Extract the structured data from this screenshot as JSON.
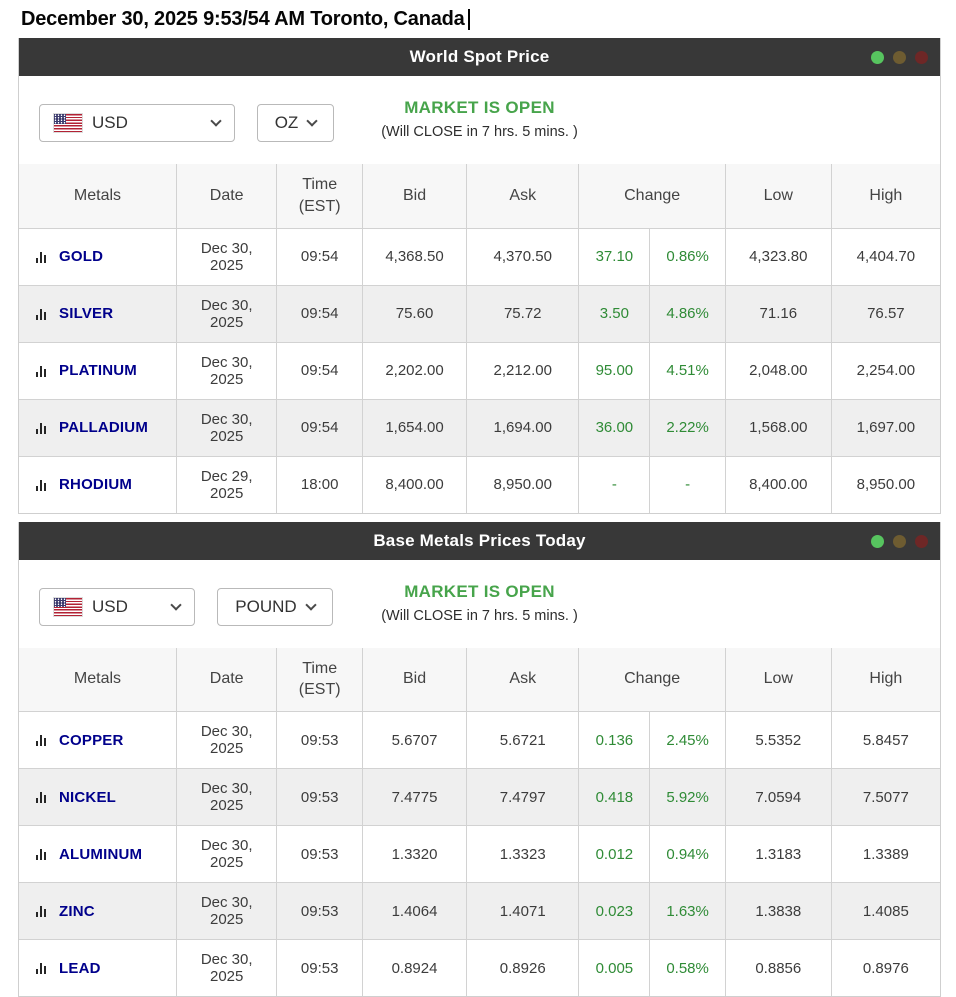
{
  "page": {
    "date_heading": "December 30, 2025 9:53/54 AM Toronto, Canada"
  },
  "colors": {
    "header_bar": "#383838",
    "market_open_green": "#47a44b",
    "positive_change_green": "#2f8b36",
    "metal_link_navy": "#00008b",
    "dot_green": "#57c45f",
    "dot_amber": "#6e5c31",
    "dot_red": "#6e2726",
    "zebra_row": "#efefef"
  },
  "table_headers": {
    "metals": "Metals",
    "date": "Date",
    "time_1": "Time",
    "time_2": "(EST)",
    "bid": "Bid",
    "ask": "Ask",
    "change": "Change",
    "low": "Low",
    "high": "High"
  },
  "spot": {
    "title": "World Spot Price",
    "currency": "USD",
    "unit": "OZ",
    "status": "MARKET IS OPEN",
    "status_note": "(Will CLOSE in 7 hrs. 5 mins. )",
    "table": {
      "rows": [
        {
          "metal": "GOLD",
          "date": "Dec 30, 2025",
          "time": "09:54",
          "bid": "4,368.50",
          "ask": "4,370.50",
          "change": "37.10",
          "change_pct": "0.86%",
          "low": "4,323.80",
          "high": "4,404.70"
        },
        {
          "metal": "SILVER",
          "date": "Dec 30, 2025",
          "time": "09:54",
          "bid": "75.60",
          "ask": "75.72",
          "change": "3.50",
          "change_pct": "4.86%",
          "low": "71.16",
          "high": "76.57"
        },
        {
          "metal": "PLATINUM",
          "date": "Dec 30, 2025",
          "time": "09:54",
          "bid": "2,202.00",
          "ask": "2,212.00",
          "change": "95.00",
          "change_pct": "4.51%",
          "low": "2,048.00",
          "high": "2,254.00"
        },
        {
          "metal": "PALLADIUM",
          "date": "Dec 30, 2025",
          "time": "09:54",
          "bid": "1,654.00",
          "ask": "1,694.00",
          "change": "36.00",
          "change_pct": "2.22%",
          "low": "1,568.00",
          "high": "1,697.00"
        },
        {
          "metal": "RHODIUM",
          "date": "Dec 29, 2025",
          "time": "18:00",
          "bid": "8,400.00",
          "ask": "8,950.00",
          "change": "-",
          "change_pct": "-",
          "low": "8,400.00",
          "high": "8,950.00"
        }
      ]
    }
  },
  "base": {
    "title": "Base Metals Prices Today",
    "currency": "USD",
    "unit": "POUND",
    "status": "MARKET IS OPEN",
    "status_note": "(Will CLOSE in 7 hrs. 5 mins. )",
    "table": {
      "rows": [
        {
          "metal": "COPPER",
          "date": "Dec 30, 2025",
          "time": "09:53",
          "bid": "5.6707",
          "ask": "5.6721",
          "change": "0.136",
          "change_pct": "2.45%",
          "low": "5.5352",
          "high": "5.8457"
        },
        {
          "metal": "NICKEL",
          "date": "Dec 30, 2025",
          "time": "09:53",
          "bid": "7.4775",
          "ask": "7.4797",
          "change": "0.418",
          "change_pct": "5.92%",
          "low": "7.0594",
          "high": "7.5077"
        },
        {
          "metal": "ALUMINUM",
          "date": "Dec 30, 2025",
          "time": "09:53",
          "bid": "1.3320",
          "ask": "1.3323",
          "change": "0.012",
          "change_pct": "0.94%",
          "low": "1.3183",
          "high": "1.3389"
        },
        {
          "metal": "ZINC",
          "date": "Dec 30, 2025",
          "time": "09:53",
          "bid": "1.4064",
          "ask": "1.4071",
          "change": "0.023",
          "change_pct": "1.63%",
          "low": "1.3838",
          "high": "1.4085"
        },
        {
          "metal": "LEAD",
          "date": "Dec 30, 2025",
          "time": "09:53",
          "bid": "0.8924",
          "ask": "0.8926",
          "change": "0.005",
          "change_pct": "0.58%",
          "low": "0.8856",
          "high": "0.8976"
        }
      ]
    }
  }
}
